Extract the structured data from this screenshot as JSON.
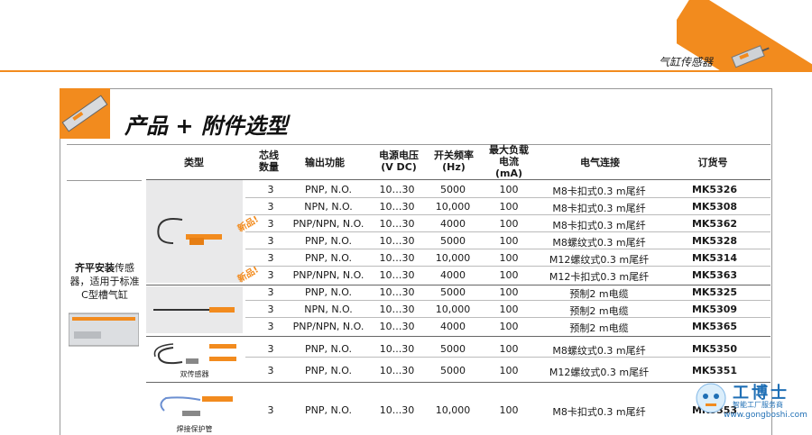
{
  "corner_badge": "新品",
  "category": "气缸传感器",
  "title": "产品 + 附件选型",
  "headers": {
    "type": "类型",
    "cores": "芯线\n数量",
    "output": "输出功能",
    "voltage": "电源电压\n(V DC)",
    "freq": "开关频率\n(Hz)",
    "current": "最大负载\n电流\n(mA)",
    "connection": "电气连接",
    "order": "订货号"
  },
  "left_label_bold": "齐平安装",
  "left_label_rest": "传感器，适用于标准C型槽气缸",
  "new_tag": "新品!",
  "captions": {
    "dual": "双传感器",
    "weld": "焊接保护管"
  },
  "rows": [
    {
      "cores": "3",
      "output": "PNP, N.O.",
      "voltage": "10…30",
      "freq": "5000",
      "current": "100",
      "connection": "M8卡扣式0.3 m尾纤",
      "order": "MK5326"
    },
    {
      "cores": "3",
      "output": "NPN, N.O.",
      "voltage": "10…30",
      "freq": "10,000",
      "current": "100",
      "connection": "M8卡扣式0.3 m尾纤",
      "order": "MK5308"
    },
    {
      "cores": "3",
      "output": "PNP/NPN, N.O.",
      "voltage": "10…30",
      "freq": "4000",
      "current": "100",
      "connection": "M8卡扣式0.3 m尾纤",
      "order": "MK5362"
    },
    {
      "cores": "3",
      "output": "PNP, N.O.",
      "voltage": "10…30",
      "freq": "5000",
      "current": "100",
      "connection": "M8螺纹式0.3 m尾纤",
      "order": "MK5328"
    },
    {
      "cores": "3",
      "output": "PNP, N.O.",
      "voltage": "10…30",
      "freq": "10,000",
      "current": "100",
      "connection": "M12螺纹式0.3 m尾纤",
      "order": "MK5314"
    },
    {
      "cores": "3",
      "output": "PNP/NPN, N.O.",
      "voltage": "10…30",
      "freq": "4000",
      "current": "100",
      "connection": "M12卡扣式0.3 m尾纤",
      "order": "MK5363"
    },
    {
      "cores": "3",
      "output": "PNP, N.O.",
      "voltage": "10…30",
      "freq": "5000",
      "current": "100",
      "connection": "预制2 m电缆",
      "order": "MK5325"
    },
    {
      "cores": "3",
      "output": "NPN, N.O.",
      "voltage": "10…30",
      "freq": "10,000",
      "current": "100",
      "connection": "预制2 m电缆",
      "order": "MK5309"
    },
    {
      "cores": "3",
      "output": "PNP/NPN, N.O.",
      "voltage": "10…30",
      "freq": "4000",
      "current": "100",
      "connection": "预制2 m电缆",
      "order": "MK5365"
    },
    {
      "cores": "3",
      "output": "PNP, N.O.",
      "voltage": "10...30",
      "freq": "5000",
      "current": "100",
      "connection": "M8螺纹式0.3 m尾纤",
      "order": "MK5350"
    },
    {
      "cores": "3",
      "output": "PNP, N.O.",
      "voltage": "10...30",
      "freq": "5000",
      "current": "100",
      "connection": "M12螺纹式0.3 m尾纤",
      "order": "MK5351"
    },
    {
      "cores": "3",
      "output": "PNP, N.O.",
      "voltage": "10...30",
      "freq": "10,000",
      "current": "100",
      "connection": "M8卡扣式0.3 m尾纤",
      "order": "MK5353"
    }
  ],
  "watermark": {
    "brand": "工博士",
    "sub": "智能工厂服务商",
    "url": "www.gongboshi.com"
  }
}
